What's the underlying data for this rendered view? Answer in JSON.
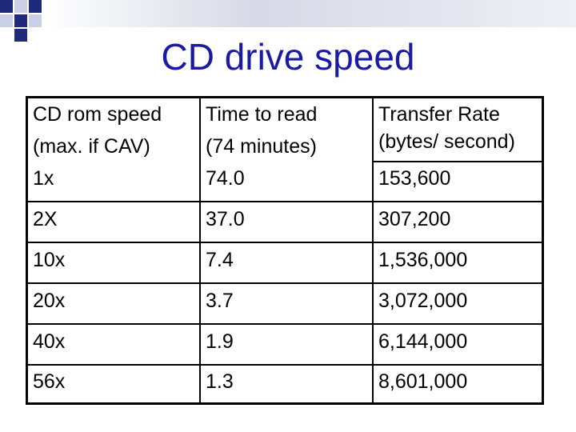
{
  "title": "CD drive speed",
  "colors": {
    "title": "#1a1aa6",
    "deco_dark": "#1f2a7a",
    "deco_light": "#c9cfe6"
  },
  "headers": {
    "col1": [
      "CD rom speed",
      "(max. if CAV)"
    ],
    "col2": [
      "Time to read",
      "(74 minutes)"
    ],
    "col3": [
      "Transfer Rate",
      "(bytes/ second)"
    ]
  },
  "rows": [
    {
      "speed": "1x",
      "time": "74.0",
      "rate": "153,600"
    },
    {
      "speed": "2X",
      "time": "37.0",
      "rate": "307,200"
    },
    {
      "speed": "10x",
      "time": "7.4",
      "rate": "1,536,000"
    },
    {
      "speed": "20x",
      "time": "3.7",
      "rate": "3,072,000"
    },
    {
      "speed": "40x",
      "time": "1.9",
      "rate": "6,144,000"
    },
    {
      "speed": "56x",
      "time": "1.3",
      "rate": "8,601,000"
    }
  ]
}
